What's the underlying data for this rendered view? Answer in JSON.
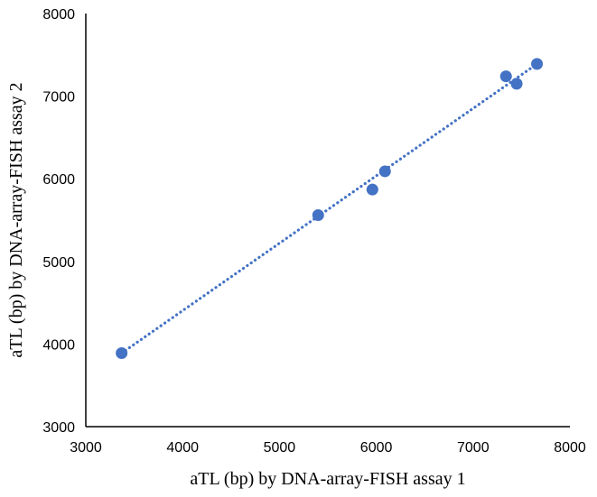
{
  "chart_data": {
    "type": "scatter",
    "title": "",
    "xlabel": "aTL (bp) by DNA-array-FISH assay 1",
    "ylabel": "aTL (bp) by DNA-array-FISH assay 2",
    "xlim": [
      3000,
      8000
    ],
    "ylim": [
      3000,
      8000
    ],
    "xticks": [
      "3000",
      "4000",
      "5000",
      "6000",
      "7000",
      "8000"
    ],
    "yticks": [
      "3000",
      "4000",
      "5000",
      "6000",
      "7000",
      "8000"
    ],
    "grid": false,
    "legend": "none",
    "trendline": {
      "type": "linear",
      "style": "dotted",
      "x": [
        3370,
        7660
      ],
      "y": [
        3890,
        7390
      ]
    },
    "series": [
      {
        "color": "#4472c4",
        "x": [
          3370,
          5400,
          5960,
          6090,
          7340,
          7450,
          7660
        ],
        "y": [
          3890,
          5560,
          5870,
          6090,
          7240,
          7150,
          7390
        ]
      }
    ]
  }
}
